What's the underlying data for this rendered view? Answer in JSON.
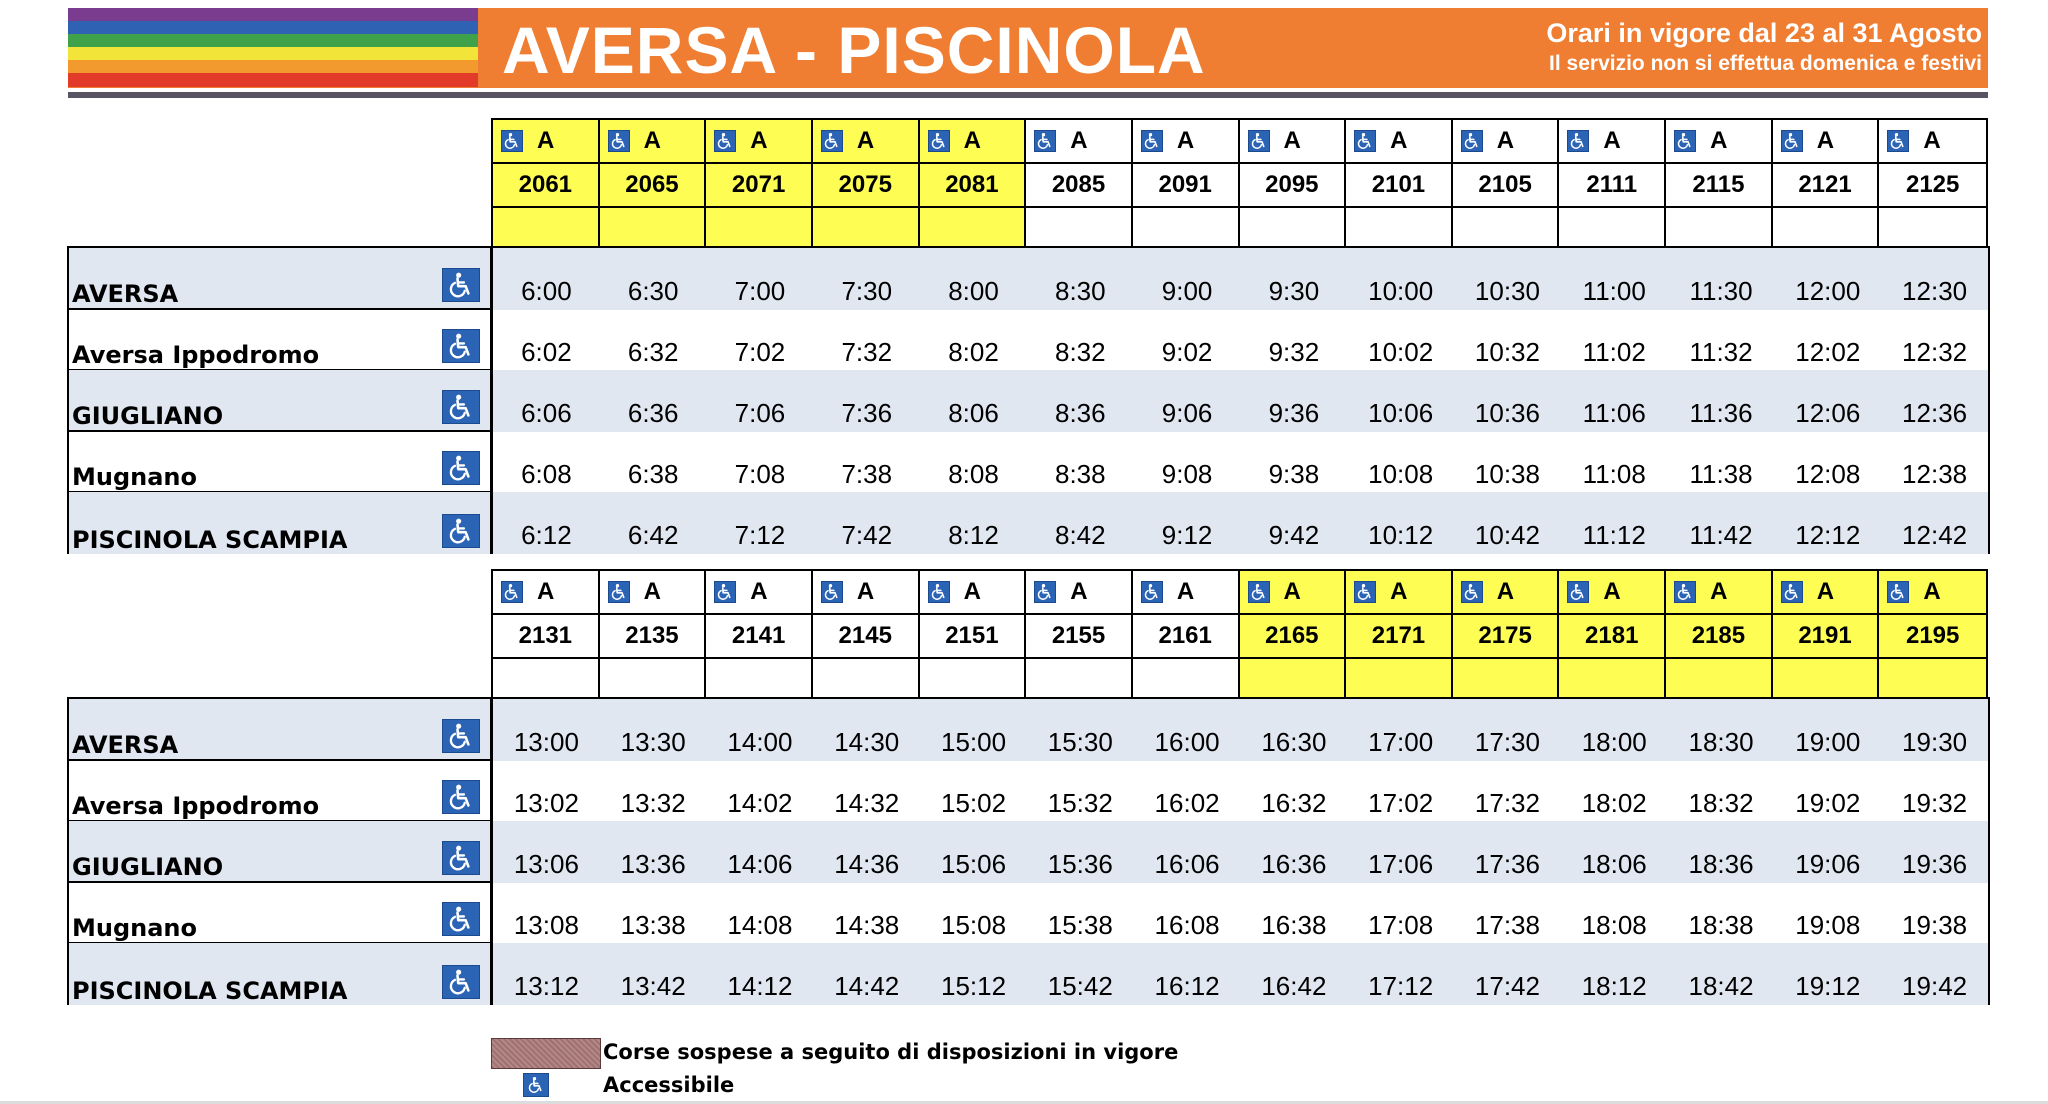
{
  "header": {
    "title": "AVERSA - PISCINOLA",
    "validity": "Orari in vigore dal 23 al 31 Agosto",
    "service_note": "Il servizio non si effettua domenica e festivi",
    "rainbow_colors": [
      "#7a3c8f",
      "#2f62b3",
      "#3fa14a",
      "#f3e43a",
      "#f29a2e",
      "#e23b2a"
    ]
  },
  "colors": {
    "banner": "#ef7d32",
    "highlight": "#fdfd54",
    "row_shade": "#e1e7f1",
    "accessible_icon": "#2b63b5",
    "suspended_swatch": "#b48888"
  },
  "icons": {
    "accessible": "wheelchair-icon"
  },
  "stops": [
    "AVERSA",
    "Aversa Ippodromo",
    "GIUGLIANO",
    "Mugnano",
    "PISCINOLA SCAMPIA"
  ],
  "blocks": [
    {
      "runs": [
        {
          "accessible": "A",
          "number": "2061",
          "highlight": true
        },
        {
          "accessible": "A",
          "number": "2065",
          "highlight": true
        },
        {
          "accessible": "A",
          "number": "2071",
          "highlight": true
        },
        {
          "accessible": "A",
          "number": "2075",
          "highlight": true
        },
        {
          "accessible": "A",
          "number": "2081",
          "highlight": true
        },
        {
          "accessible": "A",
          "number": "2085",
          "highlight": false
        },
        {
          "accessible": "A",
          "number": "2091",
          "highlight": false
        },
        {
          "accessible": "A",
          "number": "2095",
          "highlight": false
        },
        {
          "accessible": "A",
          "number": "2101",
          "highlight": false
        },
        {
          "accessible": "A",
          "number": "2105",
          "highlight": false
        },
        {
          "accessible": "A",
          "number": "2111",
          "highlight": false
        },
        {
          "accessible": "A",
          "number": "2115",
          "highlight": false
        },
        {
          "accessible": "A",
          "number": "2121",
          "highlight": false
        },
        {
          "accessible": "A",
          "number": "2125",
          "highlight": false
        }
      ],
      "times": [
        [
          "6:00",
          "6:30",
          "7:00",
          "7:30",
          "8:00",
          "8:30",
          "9:00",
          "9:30",
          "10:00",
          "10:30",
          "11:00",
          "11:30",
          "12:00",
          "12:30"
        ],
        [
          "6:02",
          "6:32",
          "7:02",
          "7:32",
          "8:02",
          "8:32",
          "9:02",
          "9:32",
          "10:02",
          "10:32",
          "11:02",
          "11:32",
          "12:02",
          "12:32"
        ],
        [
          "6:06",
          "6:36",
          "7:06",
          "7:36",
          "8:06",
          "8:36",
          "9:06",
          "9:36",
          "10:06",
          "10:36",
          "11:06",
          "11:36",
          "12:06",
          "12:36"
        ],
        [
          "6:08",
          "6:38",
          "7:08",
          "7:38",
          "8:08",
          "8:38",
          "9:08",
          "9:38",
          "10:08",
          "10:38",
          "11:08",
          "11:38",
          "12:08",
          "12:38"
        ],
        [
          "6:12",
          "6:42",
          "7:12",
          "7:42",
          "8:12",
          "8:42",
          "9:12",
          "9:42",
          "10:12",
          "10:42",
          "11:12",
          "11:42",
          "12:12",
          "12:42"
        ]
      ]
    },
    {
      "runs": [
        {
          "accessible": "A",
          "number": "2131",
          "highlight": false
        },
        {
          "accessible": "A",
          "number": "2135",
          "highlight": false
        },
        {
          "accessible": "A",
          "number": "2141",
          "highlight": false
        },
        {
          "accessible": "A",
          "number": "2145",
          "highlight": false
        },
        {
          "accessible": "A",
          "number": "2151",
          "highlight": false
        },
        {
          "accessible": "A",
          "number": "2155",
          "highlight": false
        },
        {
          "accessible": "A",
          "number": "2161",
          "highlight": false
        },
        {
          "accessible": "A",
          "number": "2165",
          "highlight": true
        },
        {
          "accessible": "A",
          "number": "2171",
          "highlight": true
        },
        {
          "accessible": "A",
          "number": "2175",
          "highlight": true
        },
        {
          "accessible": "A",
          "number": "2181",
          "highlight": true
        },
        {
          "accessible": "A",
          "number": "2185",
          "highlight": true
        },
        {
          "accessible": "A",
          "number": "2191",
          "highlight": true
        },
        {
          "accessible": "A",
          "number": "2195",
          "highlight": true
        }
      ],
      "times": [
        [
          "13:00",
          "13:30",
          "14:00",
          "14:30",
          "15:00",
          "15:30",
          "16:00",
          "16:30",
          "17:00",
          "17:30",
          "18:00",
          "18:30",
          "19:00",
          "19:30"
        ],
        [
          "13:02",
          "13:32",
          "14:02",
          "14:32",
          "15:02",
          "15:32",
          "16:02",
          "16:32",
          "17:02",
          "17:32",
          "18:02",
          "18:32",
          "19:02",
          "19:32"
        ],
        [
          "13:06",
          "13:36",
          "14:06",
          "14:36",
          "15:06",
          "15:36",
          "16:06",
          "16:36",
          "17:06",
          "17:36",
          "18:06",
          "18:36",
          "19:06",
          "19:36"
        ],
        [
          "13:08",
          "13:38",
          "14:08",
          "14:38",
          "15:08",
          "15:38",
          "16:08",
          "16:38",
          "17:08",
          "17:38",
          "18:08",
          "18:38",
          "19:08",
          "19:38"
        ],
        [
          "13:12",
          "13:42",
          "14:12",
          "14:42",
          "15:12",
          "15:42",
          "16:12",
          "16:42",
          "17:12",
          "17:42",
          "18:12",
          "18:42",
          "19:12",
          "19:42"
        ]
      ]
    }
  ],
  "legend": {
    "suspended": "Corse sospese a seguito di disposizioni in vigore",
    "accessible": "Accessibile"
  }
}
